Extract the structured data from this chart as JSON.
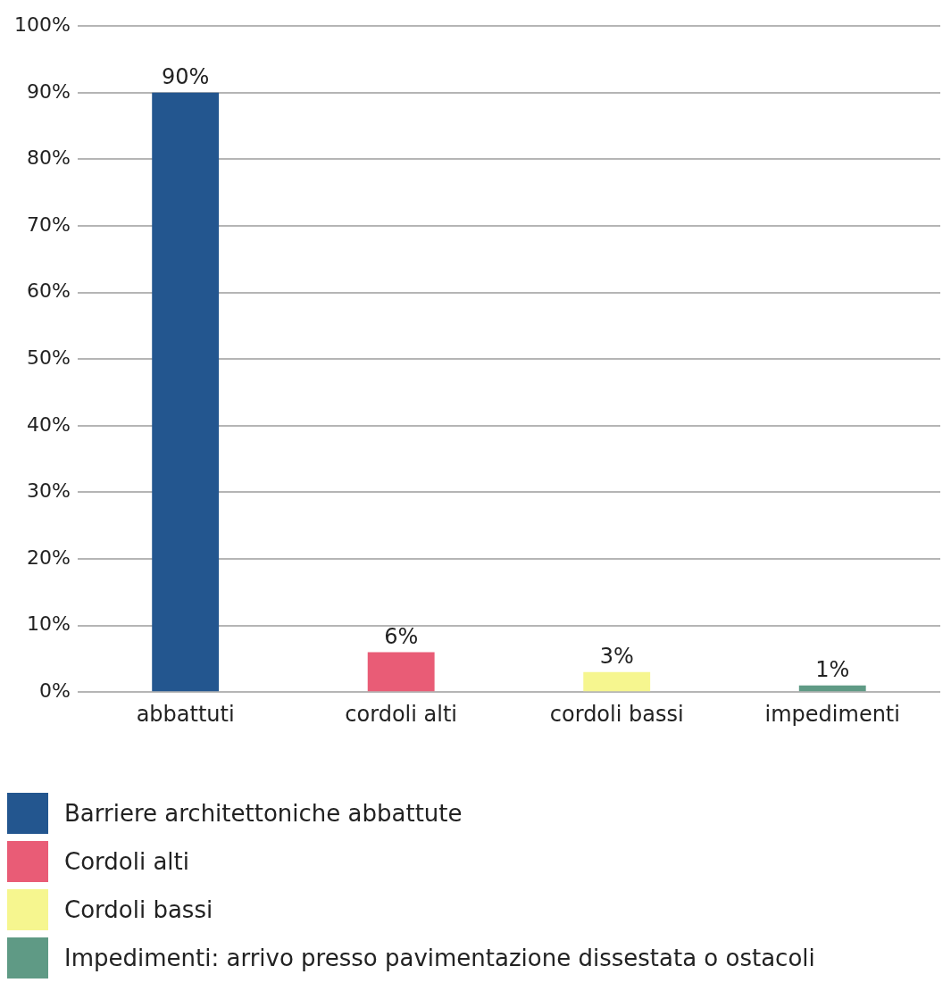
{
  "chart_data": {
    "type": "bar",
    "categories": [
      "abbattuti",
      "cordoli alti",
      "cordoli bassi",
      "impedimenti"
    ],
    "series": [
      {
        "name": "Barriere architettoniche abbattute",
        "color": "#23568f",
        "values": [
          90,
          null,
          null,
          null
        ],
        "value_labels": [
          "90%",
          null,
          null,
          null
        ]
      },
      {
        "name": "Cordoli alti",
        "color": "#e95c76",
        "values": [
          null,
          6,
          null,
          null
        ],
        "value_labels": [
          null,
          "6%",
          null,
          null
        ]
      },
      {
        "name": "Cordoli bassi",
        "color": "#f6f68f",
        "values": [
          null,
          null,
          3,
          null
        ],
        "value_labels": [
          null,
          null,
          "3%",
          null
        ]
      },
      {
        "name": "Impedimenti: arrivo presso pavimentazione dissestata o ostacoli",
        "color": "#5f9a85",
        "values": [
          null,
          null,
          null,
          1
        ],
        "value_labels": [
          null,
          null,
          null,
          "1%"
        ]
      }
    ],
    "ylim": [
      0,
      100
    ],
    "yticks": [
      {
        "value": 0,
        "label": "0%"
      },
      {
        "value": 10,
        "label": "10%"
      },
      {
        "value": 20,
        "label": "20%"
      },
      {
        "value": 30,
        "label": "30%"
      },
      {
        "value": 40,
        "label": "40%"
      },
      {
        "value": 50,
        "label": "50%"
      },
      {
        "value": 60,
        "label": "60%"
      },
      {
        "value": 70,
        "label": "70%"
      },
      {
        "value": 80,
        "label": "80%"
      },
      {
        "value": 90,
        "label": "90%"
      },
      {
        "value": 100,
        "label": "100%"
      }
    ],
    "grid": "y",
    "legend": "bottom left"
  }
}
